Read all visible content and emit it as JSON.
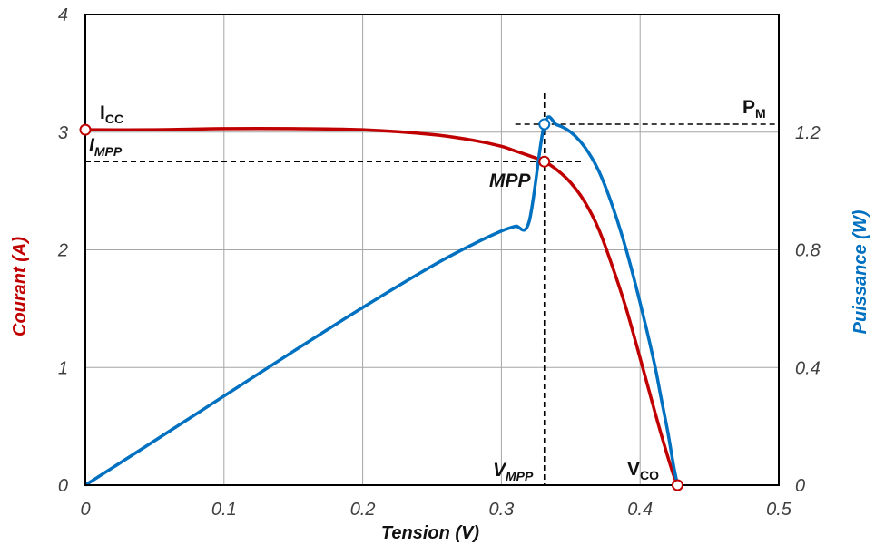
{
  "chart_data": {
    "type": "line",
    "xlabel": "Tension (V)",
    "ylabel_left": "Courant (A)",
    "ylabel_right": "Puissance (W)",
    "xlim": [
      0,
      0.5
    ],
    "ylim_left": [
      0,
      4
    ],
    "ylim_right": [
      0,
      1.6
    ],
    "grid": true,
    "x_ticks": [
      "0",
      "0.1",
      "0.2",
      "0.3",
      "0.4",
      "0.5"
    ],
    "y_left_ticks": [
      "0",
      "1",
      "2",
      "3",
      "4"
    ],
    "y_right_ticks": [
      "0",
      "0.4",
      "0.8",
      "1.2"
    ],
    "series": [
      {
        "axis": "left",
        "color": "#c00000",
        "x": [
          0,
          0.05,
          0.1,
          0.15,
          0.2,
          0.25,
          0.28,
          0.3,
          0.31,
          0.32,
          0.331,
          0.34,
          0.35,
          0.36,
          0.37,
          0.38,
          0.39,
          0.4,
          0.41,
          0.415,
          0.42,
          0.424,
          0.427
        ],
        "y": [
          3.02,
          3.02,
          3.03,
          3.03,
          3.02,
          2.98,
          2.93,
          2.88,
          2.84,
          2.8,
          2.75,
          2.68,
          2.57,
          2.41,
          2.18,
          1.86,
          1.5,
          1.08,
          0.65,
          0.44,
          0.24,
          0.09,
          0
        ]
      },
      {
        "axis": "right",
        "color": "#0070c0",
        "x": [
          0,
          0.05,
          0.1,
          0.15,
          0.2,
          0.25,
          0.28,
          0.3,
          0.31,
          0.32,
          0.331,
          0.34,
          0.35,
          0.36,
          0.37,
          0.38,
          0.39,
          0.4,
          0.41,
          0.415,
          0.42,
          0.424,
          0.427
        ],
        "y": [
          0,
          0.151,
          0.303,
          0.455,
          0.604,
          0.745,
          0.82,
          0.864,
          0.88,
          0.896,
          1.227,
          1.225,
          1.2,
          1.15,
          1.07,
          0.95,
          0.8,
          0.62,
          0.42,
          0.3,
          0.18,
          0.07,
          0
        ]
      }
    ],
    "points": {
      "icc": {
        "x": 0,
        "y": 3.02,
        "color": "#c00000"
      },
      "mpp": {
        "x": 0.331,
        "y": 2.75,
        "color": "#c00000"
      },
      "pm": {
        "x": 0.331,
        "y": 1.227,
        "color": "#0070c0"
      },
      "vco": {
        "x": 0.427,
        "y": 0,
        "color": "#c00000"
      }
    },
    "annotations": {
      "icc": {
        "main": "I",
        "sub": "CC"
      },
      "impp": {
        "main": "I",
        "sub": "MPP"
      },
      "mpp": {
        "main": "MPP"
      },
      "vmpp": {
        "main": "V",
        "sub": "MPP"
      },
      "vco": {
        "main": "V",
        "sub": "CO"
      },
      "pm": {
        "main": "P",
        "sub": "M"
      }
    },
    "reference_lines": {
      "v_mpp": 0.331,
      "i_mpp": 2.75,
      "p_m": 1.227
    }
  }
}
